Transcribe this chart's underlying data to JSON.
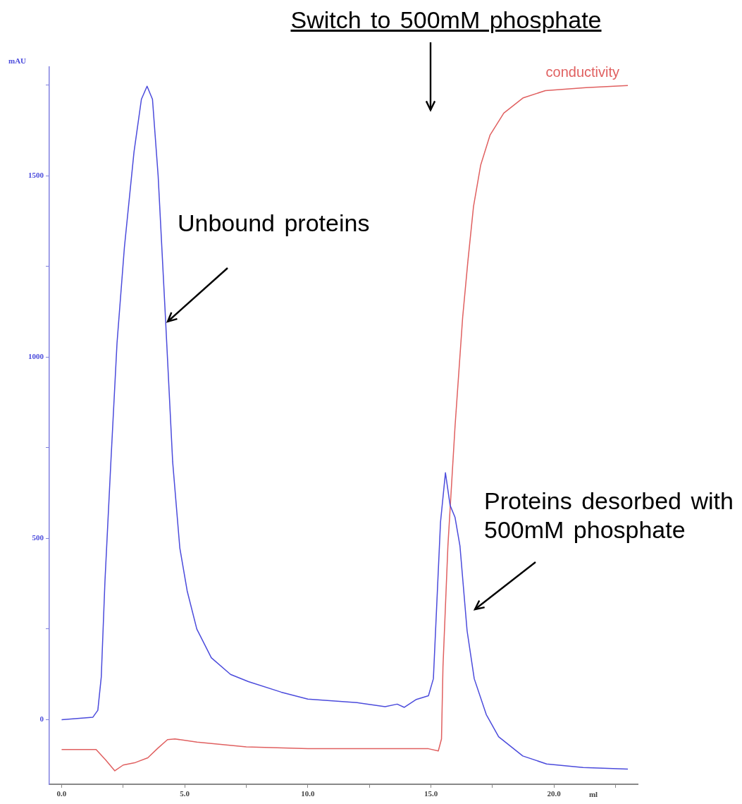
{
  "chart_data": {
    "type": "line",
    "xlabel": "ml",
    "ylabel": "mAU",
    "legend": false,
    "grid": false,
    "xlim": [
      -0.5,
      23.4
    ],
    "ylim": [
      -178,
      1800
    ],
    "xticks": [
      {
        "value": 0,
        "label": "0.0"
      },
      {
        "value": 2.5,
        "label": null
      },
      {
        "value": 5,
        "label": "5.0"
      },
      {
        "value": 7.5,
        "label": null
      },
      {
        "value": 10,
        "label": "10.0"
      },
      {
        "value": 12.5,
        "label": null
      },
      {
        "value": 15,
        "label": "15.0"
      },
      {
        "value": 17.5,
        "label": null
      },
      {
        "value": 20,
        "label": "20.0"
      },
      {
        "value": 22.5,
        "label": null
      }
    ],
    "yticks": [
      0,
      {
        "value": 250,
        "label": null
      },
      500,
      {
        "value": 750,
        "label": null
      },
      1000,
      {
        "value": 1250,
        "label": null
      },
      1500,
      {
        "value": 1750,
        "label": null
      }
    ],
    "series": [
      {
        "color": "#4b4bdc",
        "x": [
          0,
          1.27,
          1.47,
          1.61,
          1.76,
          2.0,
          2.25,
          2.55,
          2.94,
          3.24,
          3.47,
          3.69,
          3.92,
          4.22,
          4.51,
          4.8,
          5.1,
          5.49,
          6.08,
          6.86,
          7.59,
          8.92,
          10.0,
          12.0,
          13.14,
          13.63,
          13.92,
          14.41,
          14.9,
          15.1,
          15.39,
          15.59,
          15.78,
          15.98,
          16.18,
          16.47,
          16.76,
          17.25,
          17.75,
          18.73,
          19.7,
          21.18,
          23.0
        ],
        "values": [
          0,
          7,
          26,
          118,
          382,
          711,
          1039,
          1303,
          1566,
          1711,
          1747,
          1711,
          1500,
          1105,
          711,
          474,
          355,
          250,
          171,
          125,
          105,
          76,
          57,
          47,
          36,
          43,
          34,
          56,
          66,
          113,
          545,
          681,
          591,
          558,
          479,
          245,
          113,
          14,
          -47,
          -100,
          -122,
          -132,
          -136
        ]
      },
      {
        "name": "conductivity",
        "color": "#e06060",
        "x": [
          0,
          1.4,
          1.8,
          2.16,
          2.5,
          3.0,
          3.5,
          3.9,
          4.3,
          4.6,
          5.5,
          7.5,
          10,
          14.9,
          15.3,
          15.43,
          15.49,
          15.69,
          15.98,
          16.29,
          16.5,
          16.73,
          17.02,
          17.4,
          17.96,
          18.75,
          19.65,
          21.3,
          23.0
        ],
        "values": [
          -82,
          -82,
          -112,
          -141,
          -125,
          -118,
          -105,
          -79,
          -55,
          -53,
          -62,
          -75,
          -80,
          -80,
          -86,
          -53,
          146,
          479,
          809,
          1110,
          1263,
          1415,
          1529,
          1612,
          1673,
          1715,
          1735,
          1743,
          1749
        ]
      }
    ],
    "annotations": [
      "Switch to 500mM phosphate",
      "Unbound proteins",
      "Proteins desorbed with 500mM phosphate"
    ]
  }
}
